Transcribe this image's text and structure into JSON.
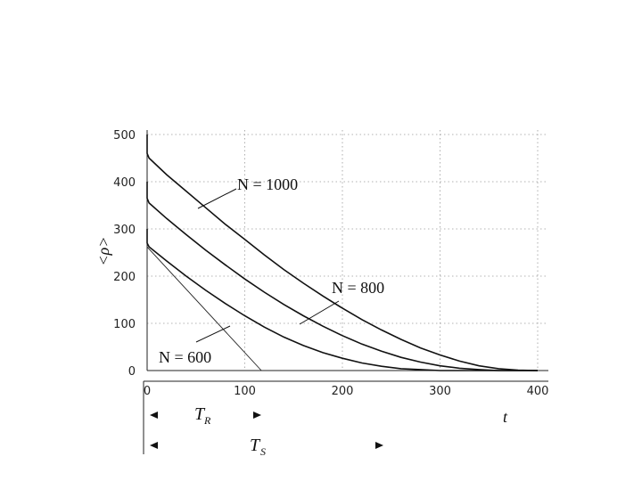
{
  "chart_data": {
    "type": "line",
    "title": "",
    "xlabel": "t",
    "ylabel": "<ρ>",
    "xlim": [
      0,
      400
    ],
    "ylim": [
      0,
      500
    ],
    "x_ticks": [
      0,
      100,
      200,
      300,
      400
    ],
    "y_ticks": [
      0,
      100,
      200,
      300,
      400,
      500
    ],
    "grid": true,
    "series": [
      {
        "name": "N = 1000",
        "x": [
          0,
          0,
          2,
          20,
          40,
          60,
          80,
          100,
          120,
          140,
          160,
          180,
          200,
          220,
          240,
          260,
          280,
          300,
          320,
          340,
          360,
          380,
          400
        ],
        "values": [
          500,
          460,
          450,
          415,
          380,
          345,
          310,
          278,
          245,
          214,
          185,
          158,
          132,
          108,
          86,
          66,
          48,
          33,
          20,
          10,
          4,
          1,
          0
        ]
      },
      {
        "name": "N = 800",
        "x": [
          0,
          0,
          2,
          20,
          40,
          60,
          80,
          100,
          120,
          140,
          160,
          180,
          200,
          220,
          240,
          260,
          280,
          300,
          320,
          340,
          360,
          380,
          400
        ],
        "values": [
          400,
          365,
          355,
          322,
          288,
          255,
          224,
          194,
          166,
          140,
          116,
          94,
          74,
          56,
          41,
          28,
          18,
          10,
          5,
          2,
          0,
          0,
          0
        ]
      },
      {
        "name": "N = 600",
        "x": [
          0,
          0,
          2,
          20,
          40,
          60,
          80,
          100,
          120,
          140,
          160,
          180,
          200,
          220,
          240,
          260,
          280,
          300,
          320,
          340,
          360,
          380,
          400
        ],
        "values": [
          300,
          270,
          262,
          232,
          200,
          170,
          142,
          116,
          92,
          71,
          53,
          38,
          26,
          16,
          9,
          4,
          2,
          0,
          0,
          0,
          0,
          0,
          0
        ]
      }
    ],
    "tangent_line": {
      "x": [
        0,
        117
      ],
      "values": [
        262,
        0
      ]
    },
    "annotations": {
      "n1000": "N = 1000",
      "n800": "N = 800",
      "n600": "N = 600",
      "t_axis": "t",
      "tau_r": "T",
      "tau_r_sub": "R",
      "tau_s": "T",
      "tau_s_sub": "S"
    }
  }
}
